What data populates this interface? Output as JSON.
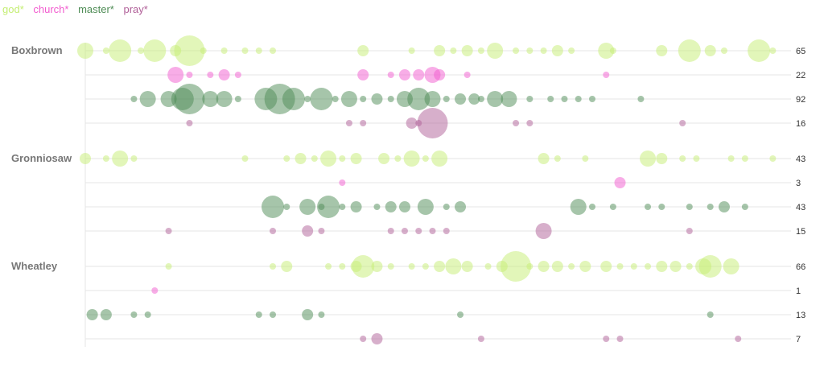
{
  "legend": [
    {
      "label": "god*",
      "color": "#c5ee74"
    },
    {
      "label": "church*",
      "color": "#f25ccf"
    },
    {
      "label": "master*",
      "color": "#4e8c55"
    },
    {
      "label": "pray*",
      "color": "#b05f98"
    }
  ],
  "chart_data": {
    "type": "scatter",
    "title": "",
    "xlabel": "",
    "ylabel": "",
    "xlim": [
      0,
      100
    ],
    "authors": [
      {
        "name": "Boxbrown",
        "rows": [
          {
            "term": "god*",
            "total": 65,
            "points": [
              [
                0,
                3
              ],
              [
                3,
                1
              ],
              [
                5,
                4
              ],
              [
                8,
                1
              ],
              [
                10,
                4
              ],
              [
                13,
                2
              ],
              [
                15,
                5
              ],
              [
                17,
                1
              ],
              [
                20,
                1
              ],
              [
                23,
                1
              ],
              [
                25,
                1
              ],
              [
                27,
                1
              ],
              [
                40,
                2
              ],
              [
                47,
                1
              ],
              [
                51,
                2
              ],
              [
                53,
                1
              ],
              [
                55,
                2
              ],
              [
                57,
                1
              ],
              [
                59,
                3
              ],
              [
                62,
                1
              ],
              [
                64,
                1
              ],
              [
                66,
                1
              ],
              [
                68,
                2
              ],
              [
                70,
                1
              ],
              [
                75,
                3
              ],
              [
                76,
                1
              ],
              [
                83,
                2
              ],
              [
                87,
                4
              ],
              [
                90,
                2
              ],
              [
                92,
                1
              ],
              [
                97,
                4
              ],
              [
                99,
                1
              ]
            ]
          },
          {
            "term": "church*",
            "total": 22,
            "points": [
              [
                13,
                3
              ],
              [
                15,
                1
              ],
              [
                18,
                1
              ],
              [
                20,
                2
              ],
              [
                22,
                1
              ],
              [
                40,
                2
              ],
              [
                44,
                1
              ],
              [
                46,
                2
              ],
              [
                48,
                2
              ],
              [
                50,
                3
              ],
              [
                51,
                2
              ],
              [
                55,
                1
              ],
              [
                75,
                1
              ]
            ]
          },
          {
            "term": "master*",
            "total": 92,
            "points": [
              [
                7,
                1
              ],
              [
                9,
                3
              ],
              [
                12,
                3
              ],
              [
                14,
                4
              ],
              [
                15,
                5
              ],
              [
                18,
                3
              ],
              [
                20,
                3
              ],
              [
                22,
                1
              ],
              [
                26,
                4
              ],
              [
                28,
                5
              ],
              [
                30,
                4
              ],
              [
                32,
                1
              ],
              [
                34,
                4
              ],
              [
                36,
                1
              ],
              [
                38,
                3
              ],
              [
                40,
                1
              ],
              [
                42,
                2
              ],
              [
                44,
                1
              ],
              [
                46,
                3
              ],
              [
                48,
                4
              ],
              [
                50,
                3
              ],
              [
                52,
                1
              ],
              [
                54,
                2
              ],
              [
                56,
                2
              ],
              [
                57,
                1
              ],
              [
                59,
                3
              ],
              [
                61,
                3
              ],
              [
                64,
                1
              ],
              [
                67,
                1
              ],
              [
                69,
                1
              ],
              [
                71,
                1
              ],
              [
                73,
                1
              ],
              [
                80,
                1
              ]
            ]
          },
          {
            "term": "pray*",
            "total": 16,
            "points": [
              [
                15,
                1
              ],
              [
                38,
                1
              ],
              [
                40,
                1
              ],
              [
                47,
                2
              ],
              [
                48,
                1
              ],
              [
                50,
                5
              ],
              [
                62,
                1
              ],
              [
                64,
                1
              ],
              [
                86,
                1
              ]
            ]
          }
        ]
      },
      {
        "name": "Gronniosaw",
        "rows": [
          {
            "term": "god*",
            "total": 43,
            "points": [
              [
                0,
                2
              ],
              [
                3,
                1
              ],
              [
                5,
                3
              ],
              [
                7,
                1
              ],
              [
                23,
                1
              ],
              [
                29,
                1
              ],
              [
                31,
                2
              ],
              [
                33,
                1
              ],
              [
                35,
                3
              ],
              [
                37,
                1
              ],
              [
                39,
                2
              ],
              [
                43,
                2
              ],
              [
                45,
                1
              ],
              [
                47,
                3
              ],
              [
                49,
                1
              ],
              [
                51,
                3
              ],
              [
                66,
                2
              ],
              [
                68,
                1
              ],
              [
                72,
                1
              ],
              [
                81,
                3
              ],
              [
                83,
                2
              ],
              [
                86,
                1
              ],
              [
                88,
                1
              ],
              [
                93,
                1
              ],
              [
                95,
                1
              ],
              [
                99,
                1
              ]
            ]
          },
          {
            "term": "church*",
            "total": 3,
            "points": [
              [
                37,
                1
              ],
              [
                77,
                2
              ]
            ]
          },
          {
            "term": "master*",
            "total": 43,
            "points": [
              [
                27,
                4
              ],
              [
                29,
                1
              ],
              [
                32,
                3
              ],
              [
                34,
                1
              ],
              [
                35,
                4
              ],
              [
                37,
                1
              ],
              [
                39,
                2
              ],
              [
                42,
                1
              ],
              [
                44,
                2
              ],
              [
                46,
                2
              ],
              [
                49,
                3
              ],
              [
                52,
                1
              ],
              [
                54,
                2
              ],
              [
                71,
                3
              ],
              [
                73,
                1
              ],
              [
                76,
                1
              ],
              [
                81,
                1
              ],
              [
                83,
                1
              ],
              [
                87,
                1
              ],
              [
                90,
                1
              ],
              [
                92,
                2
              ],
              [
                95,
                1
              ]
            ]
          },
          {
            "term": "pray*",
            "total": 15,
            "points": [
              [
                12,
                1
              ],
              [
                27,
                1
              ],
              [
                32,
                2
              ],
              [
                34,
                1
              ],
              [
                44,
                1
              ],
              [
                46,
                1
              ],
              [
                48,
                1
              ],
              [
                50,
                1
              ],
              [
                52,
                1
              ],
              [
                66,
                3
              ],
              [
                87,
                1
              ]
            ]
          }
        ]
      },
      {
        "name": "Wheatley",
        "rows": [
          {
            "term": "god*",
            "total": 66,
            "points": [
              [
                12,
                1
              ],
              [
                27,
                1
              ],
              [
                29,
                2
              ],
              [
                35,
                1
              ],
              [
                37,
                1
              ],
              [
                39,
                2
              ],
              [
                40,
                4
              ],
              [
                42,
                2
              ],
              [
                44,
                1
              ],
              [
                47,
                1
              ],
              [
                49,
                1
              ],
              [
                51,
                2
              ],
              [
                53,
                3
              ],
              [
                55,
                2
              ],
              [
                58,
                1
              ],
              [
                60,
                2
              ],
              [
                62,
                5
              ],
              [
                64,
                1
              ],
              [
                66,
                2
              ],
              [
                68,
                2
              ],
              [
                70,
                1
              ],
              [
                72,
                2
              ],
              [
                75,
                2
              ],
              [
                77,
                1
              ],
              [
                79,
                1
              ],
              [
                81,
                1
              ],
              [
                83,
                2
              ],
              [
                85,
                2
              ],
              [
                87,
                1
              ],
              [
                89,
                3
              ],
              [
                90,
                4
              ],
              [
                93,
                3
              ]
            ]
          },
          {
            "term": "church*",
            "total": 1,
            "points": [
              [
                10,
                1
              ]
            ]
          },
          {
            "term": "master*",
            "total": 13,
            "points": [
              [
                1,
                2
              ],
              [
                3,
                2
              ],
              [
                7,
                1
              ],
              [
                9,
                1
              ],
              [
                25,
                1
              ],
              [
                27,
                1
              ],
              [
                32,
                2
              ],
              [
                34,
                1
              ],
              [
                54,
                1
              ],
              [
                90,
                1
              ]
            ]
          },
          {
            "term": "pray*",
            "total": 7,
            "points": [
              [
                40,
                1
              ],
              [
                42,
                2
              ],
              [
                57,
                1
              ],
              [
                75,
                1
              ],
              [
                77,
                1
              ],
              [
                94,
                1
              ]
            ]
          }
        ]
      }
    ]
  }
}
